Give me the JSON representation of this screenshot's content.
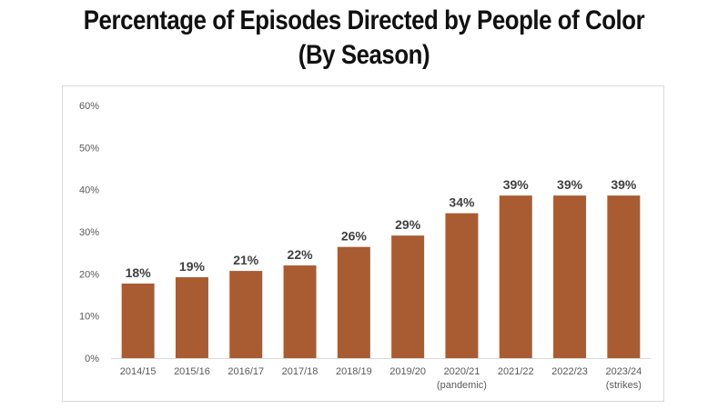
{
  "title_line1": "Percentage of Episodes Directed by People of Color",
  "title_line2": "(By Season)",
  "chart_data": {
    "type": "bar",
    "categories": [
      "2014/15",
      "2015/16",
      "2016/17",
      "2017/18",
      "2018/19",
      "2019/20",
      "2020/21",
      "2021/22",
      "2022/23",
      "2023/24"
    ],
    "category_sublabels": [
      "",
      "",
      "",
      "",
      "",
      "",
      "(pandemic)",
      "",
      "",
      "(strikes)"
    ],
    "values": [
      17.7,
      19.2,
      20.7,
      22.0,
      26.4,
      29.1,
      34.4,
      38.6,
      38.6,
      38.6
    ],
    "data_labels": [
      "18%",
      "19%",
      "21%",
      "22%",
      "26%",
      "29%",
      "34%",
      "39%",
      "39%",
      "39%"
    ],
    "ylim": [
      0,
      60
    ],
    "yticks": [
      0,
      10,
      20,
      30,
      40,
      50,
      60
    ],
    "ytick_labels": [
      "0%",
      "10%",
      "20%",
      "30%",
      "40%",
      "50%",
      "60%"
    ],
    "grid": false,
    "bar_color": "#a95c32"
  }
}
